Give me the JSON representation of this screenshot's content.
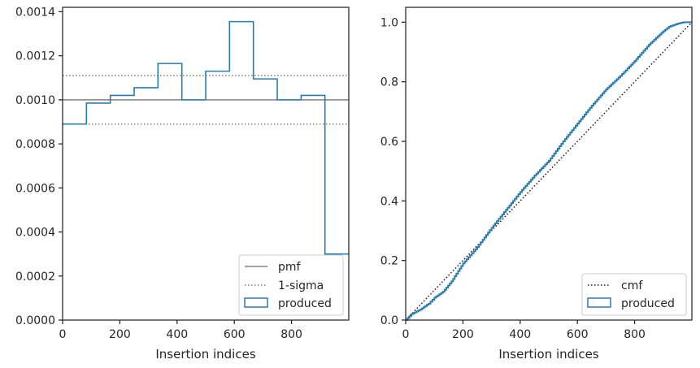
{
  "colors": {
    "produced": "#2b7bb0",
    "pmf": "#808080",
    "sigma": "#808080",
    "cmf": "#1a1a1a",
    "spine": "#262626"
  },
  "chart_data": [
    {
      "type": "step-histogram",
      "xlabel": "Insertion indices",
      "ylabel": "",
      "xlim": [
        0,
        1000
      ],
      "ylim": [
        0,
        0.00142
      ],
      "xticks": [
        0,
        200,
        400,
        600,
        800
      ],
      "xtick_labels": [
        "0",
        "200",
        "400",
        "600",
        "800"
      ],
      "yticks": [
        0,
        0.0002,
        0.0004,
        0.0006,
        0.0008,
        0.001,
        0.0012,
        0.0014
      ],
      "ytick_labels": [
        "0.0000",
        "0.0002",
        "0.0004",
        "0.0006",
        "0.0008",
        "0.0010",
        "0.0012",
        "0.0014"
      ],
      "grid": false,
      "legend_position": "lower right",
      "series": [
        {
          "name": "pmf",
          "style": "solid",
          "y": 0.001
        },
        {
          "name": "1-sigma",
          "style": "dotted",
          "y": [
            0.00089,
            0.00111
          ]
        },
        {
          "name": "produced",
          "style": "step",
          "bin_edges": [
            0,
            83.3,
            166.7,
            250,
            333.3,
            416.7,
            500,
            583.3,
            666.7,
            750,
            833.3,
            916.7,
            1000
          ],
          "values": [
            0.00089,
            0.000985,
            0.00102,
            0.001055,
            0.001165,
            0.001,
            0.00113,
            0.001355,
            0.001095,
            0.001,
            0.00102,
            0.0003
          ]
        }
      ]
    },
    {
      "type": "line",
      "xlabel": "Insertion indices",
      "ylabel": "",
      "xlim": [
        0,
        1000
      ],
      "ylim": [
        0,
        1.05
      ],
      "xticks": [
        0,
        200,
        400,
        600,
        800
      ],
      "xtick_labels": [
        "0",
        "200",
        "400",
        "600",
        "800"
      ],
      "yticks": [
        0,
        0.2,
        0.4,
        0.6,
        0.8,
        1.0
      ],
      "ytick_labels": [
        "0.0",
        "0.2",
        "0.4",
        "0.6",
        "0.8",
        "1.0"
      ],
      "grid": false,
      "legend_position": "lower right",
      "series": [
        {
          "name": "cmf",
          "style": "dotted",
          "x": [
            0,
            1000
          ],
          "y": [
            0,
            1
          ]
        },
        {
          "name": "produced",
          "style": "step",
          "x": [
            0,
            20,
            50,
            80,
            100,
            130,
            160,
            200,
            250,
            300,
            350,
            400,
            450,
            500,
            550,
            600,
            650,
            700,
            750,
            800,
            850,
            900,
            920,
            950,
            970,
            990,
            1000
          ],
          "y": [
            0.0,
            0.02,
            0.035,
            0.055,
            0.075,
            0.095,
            0.13,
            0.19,
            0.245,
            0.31,
            0.37,
            0.43,
            0.485,
            0.535,
            0.6,
            0.66,
            0.72,
            0.775,
            0.82,
            0.87,
            0.925,
            0.97,
            0.985,
            0.995,
            1.0,
            1.0,
            1.0
          ]
        }
      ]
    }
  ]
}
